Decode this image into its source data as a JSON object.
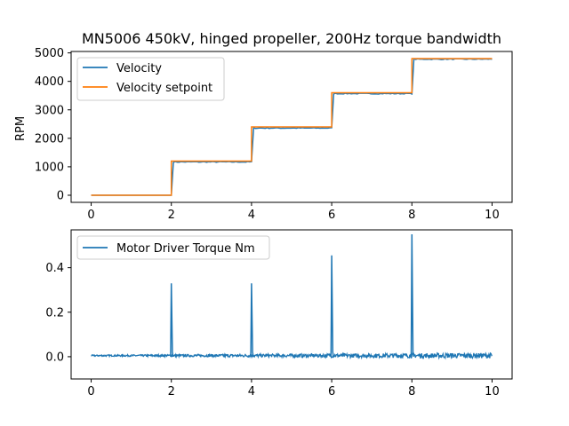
{
  "chart_data": [
    {
      "type": "line",
      "title": "MN5006 450kV, hinged propeller, 200Hz torque bandwidth",
      "xlabel": "",
      "ylabel": "RPM",
      "xlim": [
        -0.5,
        10.5
      ],
      "ylim": [
        -250,
        5050
      ],
      "xticks": [
        "0",
        "2",
        "4",
        "6",
        "8",
        "10"
      ],
      "yticks": [
        "0",
        "1000",
        "2000",
        "3000",
        "4000",
        "5000"
      ],
      "grid": false,
      "legend_position": "upper-left",
      "series": [
        {
          "name": "Velocity",
          "color": "#1f77b4",
          "points": [
            [
              0,
              0
            ],
            [
              2,
              0
            ],
            [
              2.05,
              1170
            ],
            [
              4,
              1170
            ],
            [
              4.05,
              2360
            ],
            [
              6,
              2360
            ],
            [
              6.05,
              3570
            ],
            [
              8,
              3570
            ],
            [
              8.05,
              4780
            ],
            [
              10,
              4780
            ]
          ]
        },
        {
          "name": "Velocity setpoint",
          "color": "#ff7f0e",
          "points": [
            [
              0,
              0
            ],
            [
              2,
              0
            ],
            [
              2,
              1200
            ],
            [
              4,
              1200
            ],
            [
              4,
              2400
            ],
            [
              6,
              2400
            ],
            [
              6,
              3600
            ],
            [
              8,
              3600
            ],
            [
              8,
              4800
            ],
            [
              10,
              4800
            ]
          ]
        }
      ]
    },
    {
      "type": "line",
      "title": "",
      "xlabel": "",
      "ylabel": "",
      "xlim": [
        -0.5,
        10.5
      ],
      "ylim": [
        -0.1,
        0.57
      ],
      "xticks": [
        "0",
        "2",
        "4",
        "6",
        "8",
        "10"
      ],
      "yticks": [
        "0.0",
        "0.2",
        "0.4"
      ],
      "grid": false,
      "legend_position": "upper-left",
      "series": [
        {
          "name": "Motor Driver Torque Nm",
          "color": "#1f77b4",
          "baseline": 0.005,
          "spikes": [
            [
              2,
              0.33
            ],
            [
              4,
              0.33
            ],
            [
              6,
              0.455
            ],
            [
              8,
              0.55
            ]
          ],
          "noise_amplitude": 0.02
        }
      ]
    }
  ]
}
